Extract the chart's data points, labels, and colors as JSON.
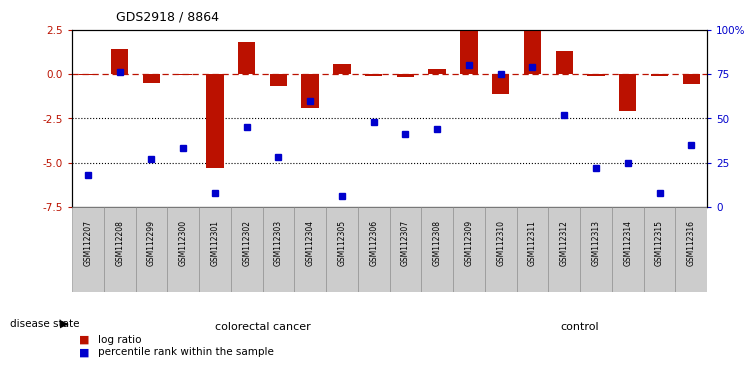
{
  "title": "GDS2918 / 8864",
  "samples": [
    "GSM112207",
    "GSM112208",
    "GSM112299",
    "GSM112300",
    "GSM112301",
    "GSM112302",
    "GSM112303",
    "GSM112304",
    "GSM112305",
    "GSM112306",
    "GSM112307",
    "GSM112308",
    "GSM112309",
    "GSM112310",
    "GSM112311",
    "GSM112312",
    "GSM112313",
    "GSM112314",
    "GSM112315",
    "GSM112316"
  ],
  "log_ratio": [
    -0.05,
    1.4,
    -0.5,
    -0.05,
    -5.3,
    1.8,
    -0.65,
    -1.9,
    0.55,
    -0.12,
    -0.15,
    0.3,
    2.5,
    -1.1,
    2.5,
    1.3,
    -0.1,
    -2.1,
    -0.12,
    -0.55
  ],
  "percentile_rank": [
    18,
    76,
    27,
    33,
    8,
    45,
    28,
    60,
    6,
    48,
    41,
    44,
    80,
    75,
    79,
    52,
    22,
    25,
    8,
    35
  ],
  "colorectal_cancer_count": 12,
  "control_count": 8,
  "bar_color": "#bb1100",
  "dot_color": "#0000cc",
  "bg_color": "#ffffff",
  "ylim_left": [
    -7.5,
    2.5
  ],
  "ylim_right": [
    0,
    100
  ],
  "yticks_left": [
    2.5,
    0.0,
    -2.5,
    -5.0,
    -7.5
  ],
  "yticks_right": [
    100,
    75,
    50,
    25,
    0
  ],
  "ytick_labels_right": [
    "100%",
    "75",
    "50",
    "25",
    "0"
  ],
  "hline_y": 0,
  "dotted_lines": [
    -2.5,
    -5.0
  ],
  "legend_log_ratio": "log ratio",
  "legend_pct": "percentile rank within the sample",
  "disease_label": "disease state",
  "group1_label": "colorectal cancer",
  "group2_label": "control",
  "group1_color": "#ccffcc",
  "group2_color": "#55dd55",
  "tick_label_bg": "#cccccc",
  "bar_width": 0.55
}
